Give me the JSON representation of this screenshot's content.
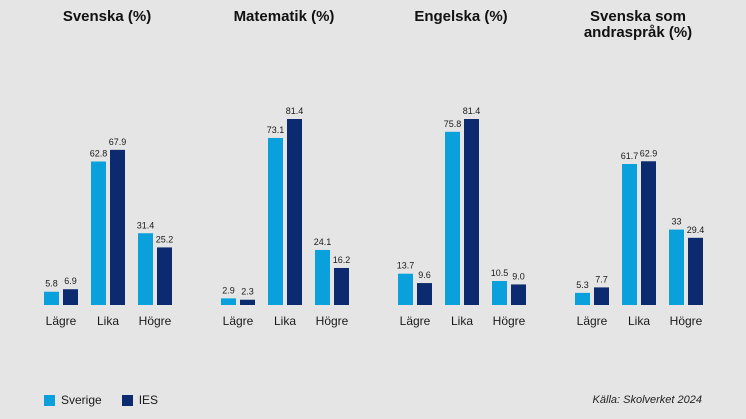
{
  "chart_data": [
    {
      "type": "bar",
      "title_lines": [
        "Svenska (%)"
      ],
      "categories": [
        "Lägre",
        "Lika",
        "Högre"
      ],
      "series": [
        {
          "name": "Sverige",
          "values": [
            5.8,
            62.8,
            31.4
          ],
          "labels": [
            "5.8",
            "62.8",
            "31.4"
          ]
        },
        {
          "name": "IES",
          "values": [
            6.9,
            67.9,
            25.2
          ],
          "labels": [
            "6.9",
            "67.9",
            "25.2"
          ]
        }
      ],
      "ylim": [
        0,
        100
      ]
    },
    {
      "type": "bar",
      "title_lines": [
        "Matematik (%)"
      ],
      "categories": [
        "Lägre",
        "Lika",
        "Högre"
      ],
      "series": [
        {
          "name": "Sverige",
          "values": [
            2.9,
            73.1,
            24.1
          ],
          "labels": [
            "2.9",
            "73.1",
            "24.1"
          ]
        },
        {
          "name": "IES",
          "values": [
            2.3,
            81.4,
            16.2
          ],
          "labels": [
            "2.3",
            "81.4",
            "16.2"
          ]
        }
      ],
      "ylim": [
        0,
        100
      ]
    },
    {
      "type": "bar",
      "title_lines": [
        "Engelska (%)"
      ],
      "categories": [
        "Lägre",
        "Lika",
        "Högre"
      ],
      "series": [
        {
          "name": "Sverige",
          "values": [
            13.7,
            75.8,
            10.5
          ],
          "labels": [
            "13.7",
            "75.8",
            "10.5"
          ]
        },
        {
          "name": "IES",
          "values": [
            9.6,
            81.4,
            9.0
          ],
          "labels": [
            "9.6",
            "81.4",
            "9.0"
          ]
        }
      ],
      "ylim": [
        0,
        100
      ]
    },
    {
      "type": "bar",
      "title_lines": [
        "Svenska som",
        "andraspråk (%)"
      ],
      "categories": [
        "Lägre",
        "Lika",
        "Högre"
      ],
      "series": [
        {
          "name": "Sverige",
          "values": [
            5.3,
            61.7,
            33
          ],
          "labels": [
            "5.3",
            "61.7",
            "33"
          ]
        },
        {
          "name": "IES",
          "values": [
            7.7,
            62.9,
            29.4
          ],
          "labels": [
            "7.7",
            "62.9",
            "29.4"
          ]
        }
      ],
      "ylim": [
        0,
        100
      ]
    }
  ],
  "colors": {
    "Sverige": "#0aa0dc",
    "IES": "#0b2a6f"
  },
  "legend": {
    "sverige_label": "Sverige",
    "ies_label": "IES"
  },
  "source": "Källa: Skolverket 2024"
}
